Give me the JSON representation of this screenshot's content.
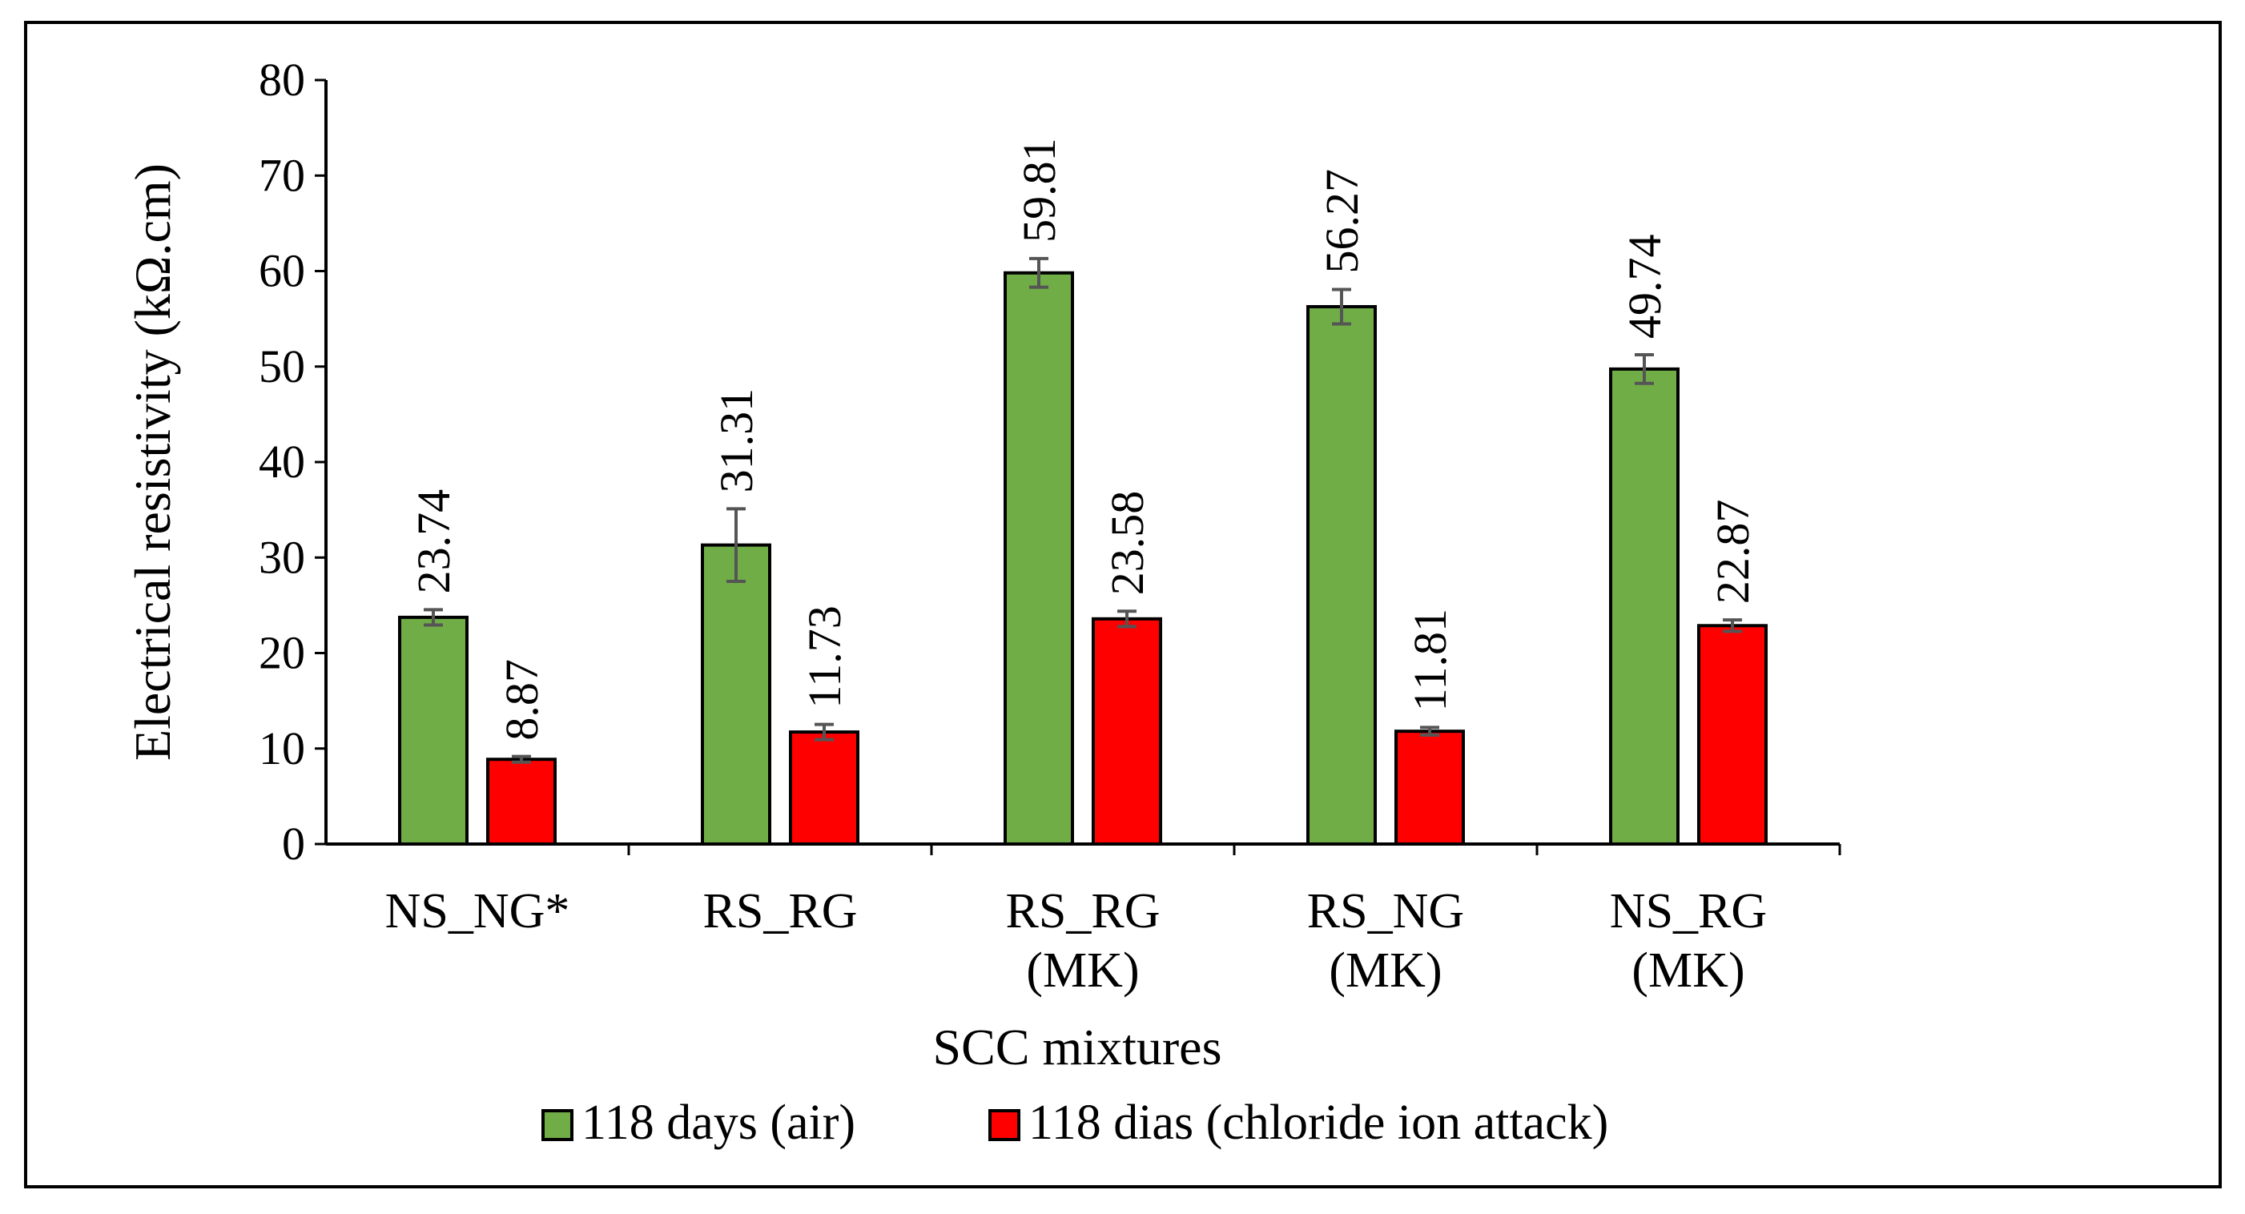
{
  "chart_data": {
    "type": "bar",
    "title": "",
    "xlabel": "SCC mixtures",
    "ylabel": "Electrical resistivity (kΩ.cm)",
    "ylim": [
      0,
      80
    ],
    "yticks": [
      0,
      10,
      20,
      30,
      40,
      50,
      60,
      70,
      80
    ],
    "grid": false,
    "legend_position": "bottom",
    "categories": [
      [
        "NS_NG*"
      ],
      [
        "RS_RG"
      ],
      [
        "RS_RG",
        "(MK)"
      ],
      [
        "RS_NG",
        "(MK)"
      ],
      [
        "NS_RG",
        "(MK)"
      ]
    ],
    "series": [
      {
        "name": "118 days (air)",
        "color": "#70ad47",
        "values": [
          23.74,
          31.31,
          59.81,
          56.27,
          49.74
        ],
        "labels": [
          "23.74",
          "31.31",
          "59.81",
          "56.27",
          "49.74"
        ],
        "errors": [
          0.8,
          3.8,
          1.5,
          1.8,
          1.5
        ]
      },
      {
        "name": "118 dias (chloride ion attack)",
        "color": "#ff0000",
        "values": [
          8.87,
          11.73,
          23.58,
          11.81,
          22.87
        ],
        "labels": [
          "8.87",
          "11.73",
          "23.58",
          "11.81",
          "22.87"
        ],
        "errors": [
          0.3,
          0.8,
          0.8,
          0.4,
          0.6
        ]
      }
    ]
  }
}
